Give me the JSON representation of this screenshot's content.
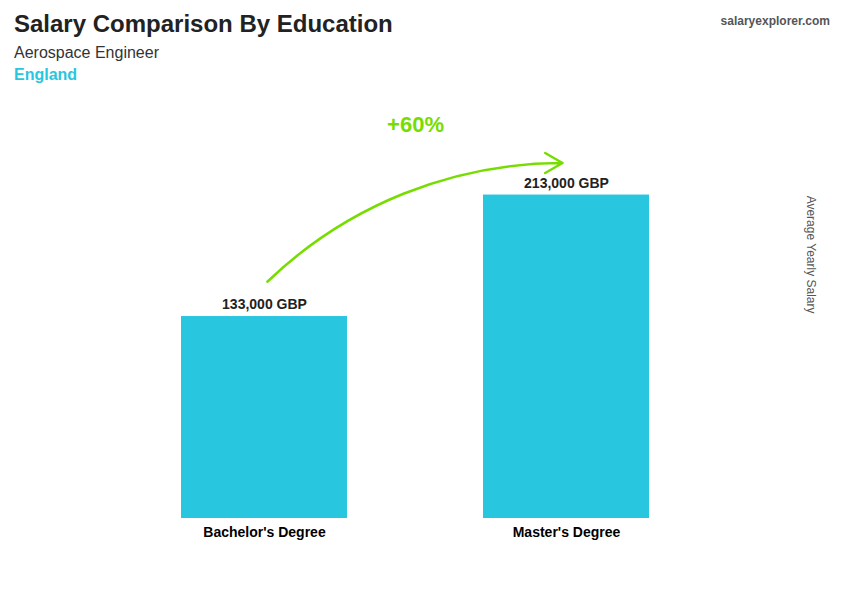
{
  "chart_data": {
    "type": "bar",
    "title": "Salary Comparison By Education",
    "subtitle": "Aerospace Engineer",
    "annotations": [
      "England",
      "+60%",
      "salaryexplorer.com"
    ],
    "y_label": "Average Yearly Salary",
    "categories": [
      "Bachelor's Degree",
      "Master's Degree"
    ],
    "values": [
      133000,
      213000
    ],
    "value_labels": [
      "133,000 GBP",
      "213,000 GBP"
    ],
    "data_labels": true,
    "color": "#29c6e0",
    "ylim": [
      0,
      270000
    ],
    "tick_labels": "x",
    "grid": false
  }
}
